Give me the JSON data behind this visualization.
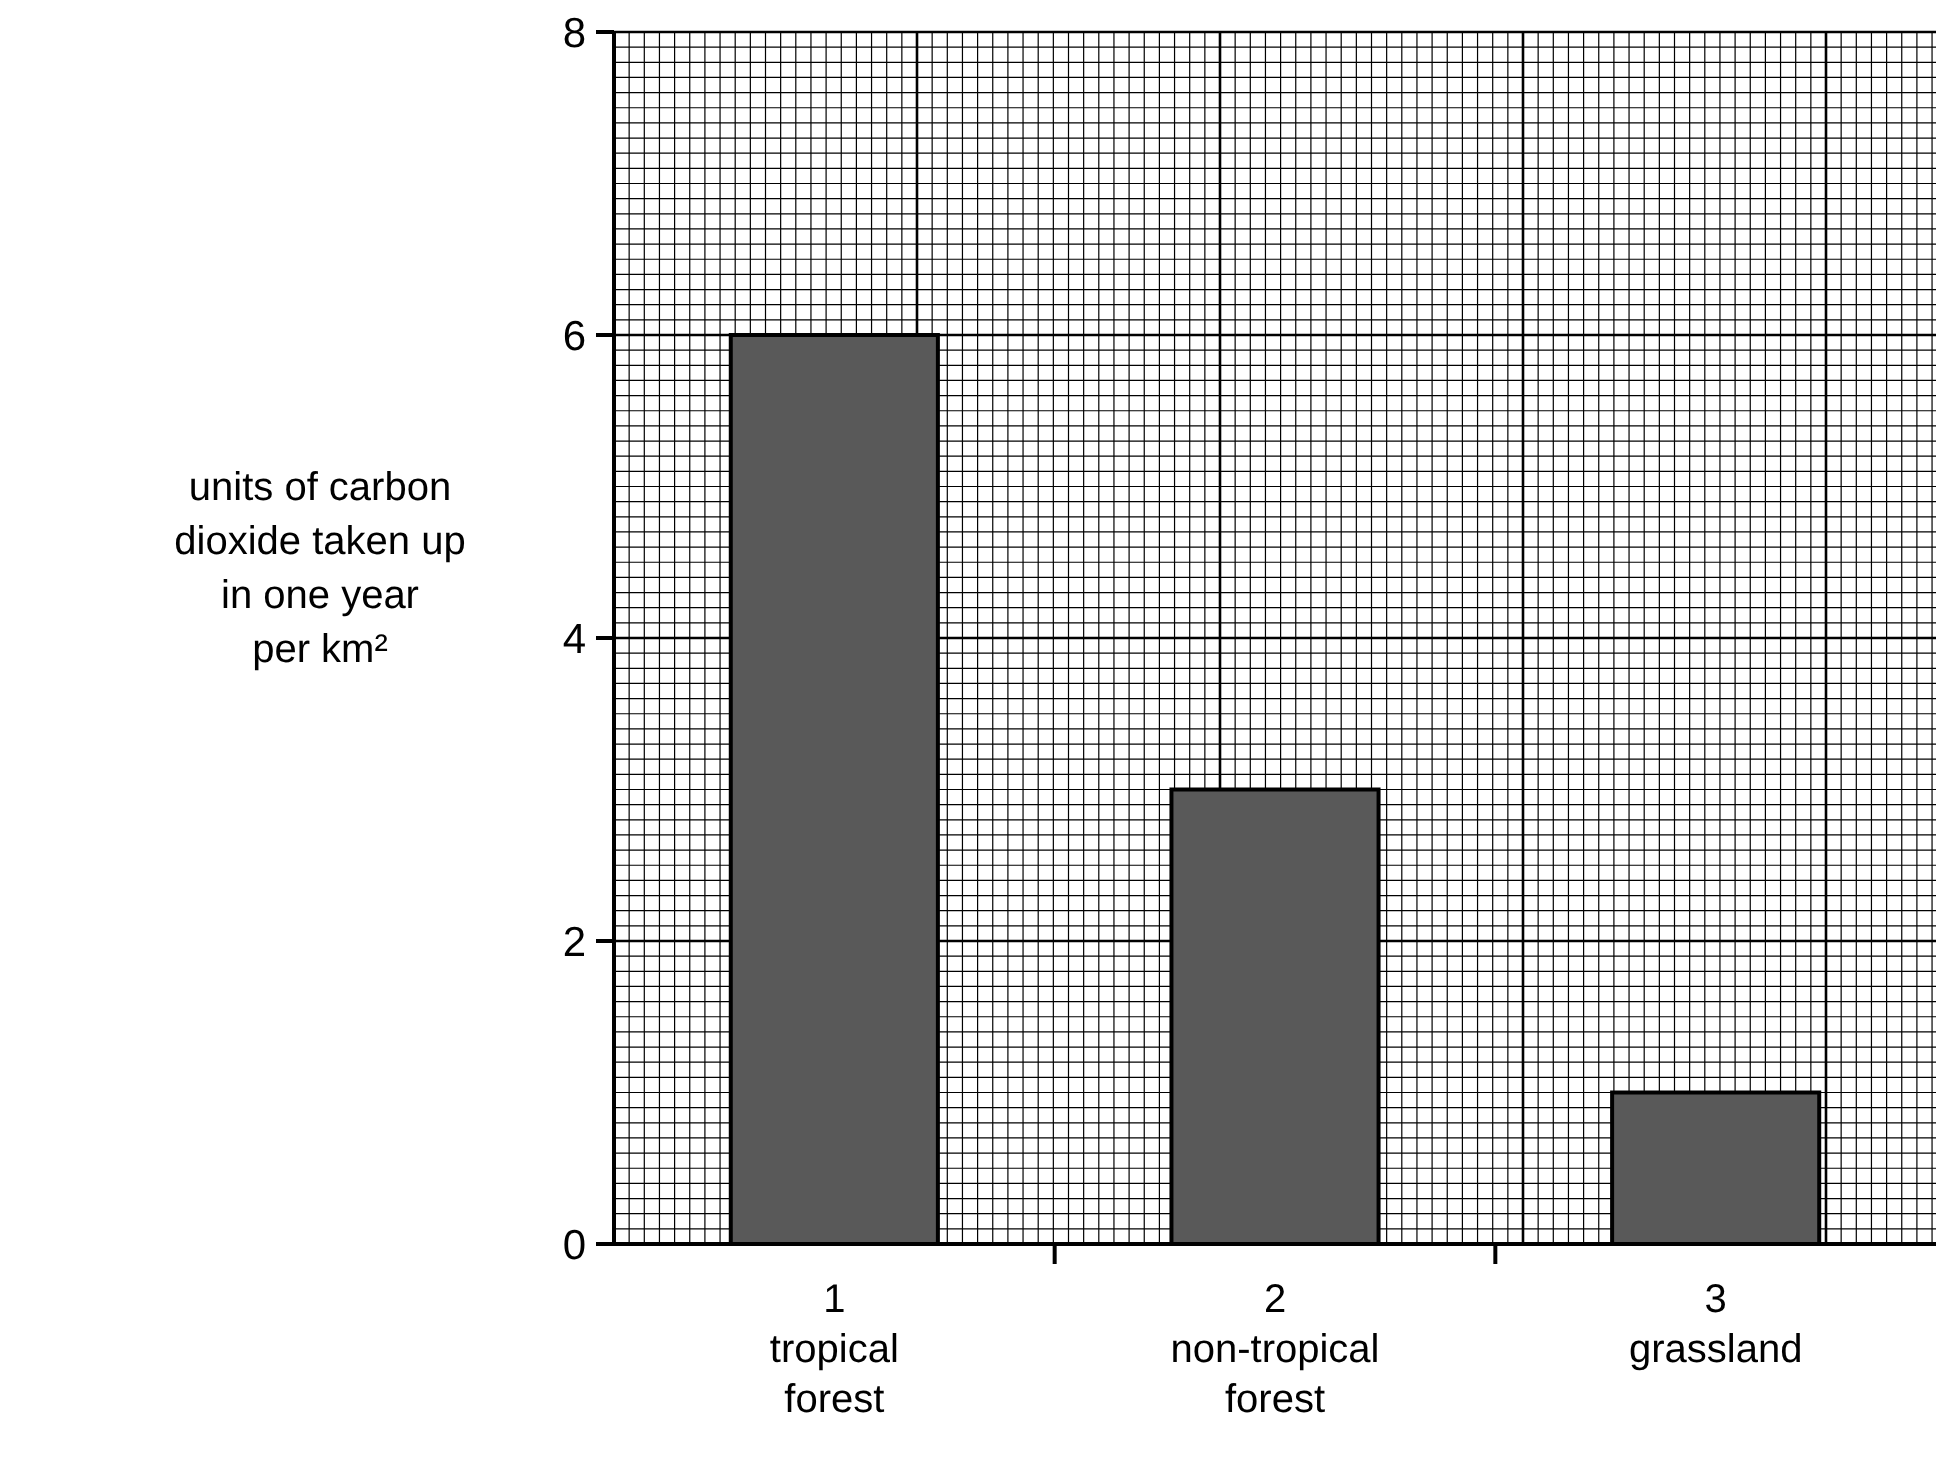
{
  "chart_data": {
    "type": "bar",
    "ylabel": "units of carbon\ndioxide taken up\nin one year\nper km²",
    "categories": [
      "1\ntropical\nforest",
      "2\nnon-tropical\nforest",
      "3\ngrassland"
    ],
    "values": [
      6,
      3,
      1
    ],
    "color": "#595959",
    "ylim": [
      0,
      8
    ],
    "yticks": [
      0,
      2,
      4,
      6,
      8
    ],
    "grid": true
  }
}
